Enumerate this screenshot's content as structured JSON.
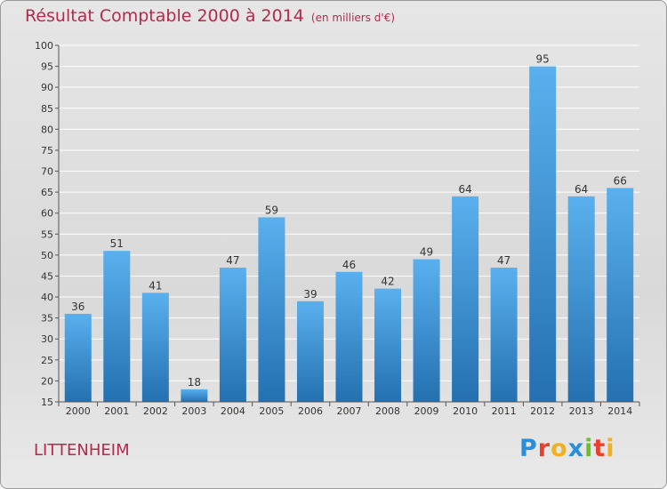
{
  "title": "Résultat Comptable 2000 à 2014",
  "subtitle": "(en milliers d'€)",
  "commune": "LITTENHEIM",
  "logo": {
    "letters": [
      "P",
      "r",
      "o",
      "x",
      "i",
      "t",
      "i"
    ],
    "colors": [
      "#2a8fd8",
      "#e8402a",
      "#f0b020",
      "#2a8fd8",
      "#6cbf2a",
      "#e8402a",
      "#f0b020"
    ]
  },
  "colors": {
    "bar_light": "#5ab0ee",
    "bar_dark": "#2470b0",
    "title": "#b42a4a"
  },
  "chart_data": {
    "type": "bar",
    "categories": [
      "2000",
      "2001",
      "2002",
      "2003",
      "2004",
      "2005",
      "2006",
      "2007",
      "2008",
      "2009",
      "2010",
      "2011",
      "2012",
      "2013",
      "2014"
    ],
    "values": [
      36,
      51,
      41,
      18,
      47,
      59,
      39,
      46,
      42,
      49,
      64,
      47,
      95,
      64,
      66
    ],
    "ylim": [
      15,
      100
    ],
    "yticks": [
      15,
      20,
      25,
      30,
      35,
      40,
      45,
      50,
      55,
      60,
      65,
      70,
      75,
      80,
      85,
      90,
      95,
      100
    ],
    "grid": true
  }
}
